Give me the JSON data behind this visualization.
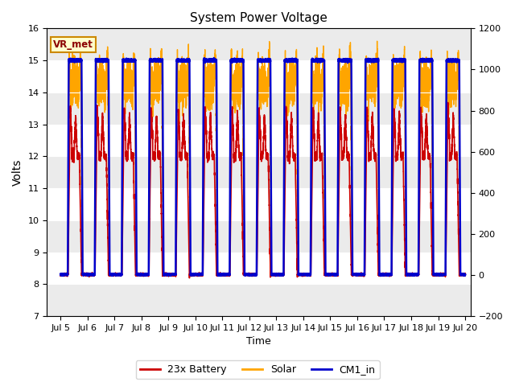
{
  "title": "System Power Voltage",
  "xlabel": "Time",
  "ylabel_left": "Volts",
  "ylim_left": [
    7.0,
    16.0
  ],
  "ylim_right": [
    -200,
    1200
  ],
  "yticks_left": [
    7.0,
    8.0,
    9.0,
    10.0,
    11.0,
    12.0,
    13.0,
    14.0,
    15.0,
    16.0
  ],
  "yticks_right": [
    -200,
    0,
    200,
    400,
    600,
    800,
    1000,
    1200
  ],
  "xtick_labels": [
    "Jul 5",
    "Jul 6",
    "Jul 7",
    "Jul 8",
    "Jul 9",
    "Jul 10",
    "Jul 11",
    "Jul 12",
    "Jul 13",
    "Jul 14",
    "Jul 15",
    "Jul 16",
    "Jul 17",
    "Jul 18",
    "Jul 19",
    "Jul 20"
  ],
  "xtick_positions": [
    5,
    6,
    7,
    8,
    9,
    10,
    11,
    12,
    13,
    14,
    15,
    16,
    17,
    18,
    19,
    20
  ],
  "background_color": "#ffffff",
  "plot_bg_color": "#ffffff",
  "grid_color_dark": "#cccccc",
  "grid_color_light": "#e8e8e8",
  "battery_color": "#cc0000",
  "solar_color": "#ffa500",
  "cm1_color": "#0000cc",
  "battery_lw": 1.2,
  "solar_lw": 1.0,
  "cm1_lw": 1.8,
  "vr_met_label": "VR_met",
  "legend_labels": [
    "23x Battery",
    "Solar",
    "CM1_in"
  ],
  "xstart": 4.5,
  "xend": 20.2
}
